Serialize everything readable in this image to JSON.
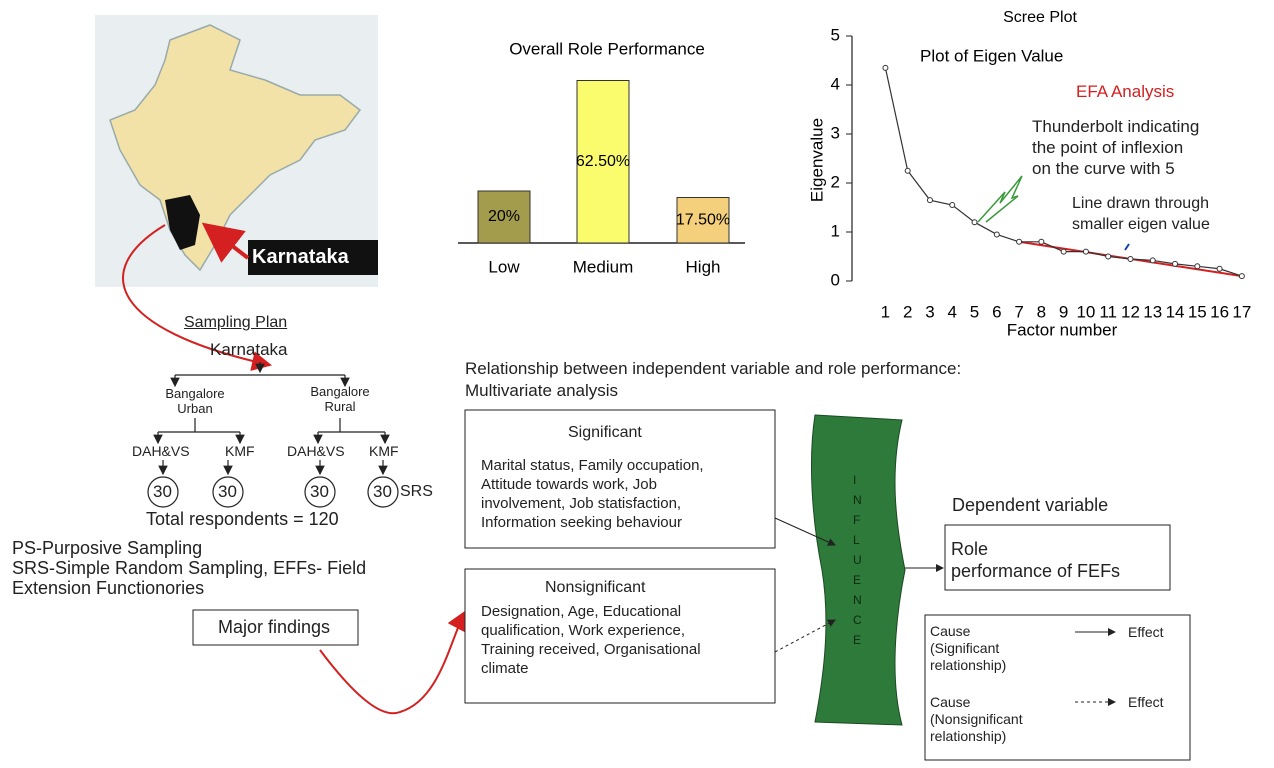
{
  "chart_data": [
    {
      "type": "bar",
      "title": "Overall Role Performance",
      "categories": [
        "Low",
        "Medium",
        "High"
      ],
      "values": [
        20,
        62.5,
        17.5
      ],
      "value_labels": [
        "20%",
        "62.50%",
        "17.50%"
      ],
      "colors": [
        "#a39c4c",
        "#fbfb6e",
        "#f4cf7c"
      ]
    },
    {
      "type": "line",
      "title": "Scree Plot",
      "subtitle": "Plot of Eigen Value",
      "x": [
        1,
        2,
        3,
        4,
        5,
        6,
        7,
        8,
        9,
        10,
        11,
        12,
        13,
        14,
        15,
        16,
        17
      ],
      "values": [
        4.35,
        2.25,
        1.65,
        1.55,
        1.2,
        0.95,
        0.8,
        0.8,
        0.6,
        0.6,
        0.5,
        0.45,
        0.42,
        0.35,
        0.3,
        0.25,
        0.1
      ],
      "xlabel": "Factor number",
      "ylabel": "Eigenvalue",
      "xlim": [
        -0.5,
        17.5
      ],
      "ylim": [
        0,
        5
      ],
      "xticks": [
        1,
        2,
        3,
        4,
        5,
        6,
        7,
        8,
        9,
        10,
        11,
        12,
        13,
        14,
        15,
        16,
        17
      ],
      "yticks": [
        0,
        1,
        2,
        3,
        4,
        5
      ],
      "color": "#333333",
      "trend_color": "#d42020",
      "efa_note": "EFA Analysis",
      "thunderbolt_note": [
        "Thunderbolt indicating",
        "the  point of inflexion",
        "on the curve with 5"
      ],
      "line_note": [
        "Line drawn through",
        "smaller eigen value"
      ]
    }
  ],
  "map": {
    "label": "Karnataka"
  },
  "sampling_plan": {
    "title": "Sampling Plan",
    "root": "Karnataka",
    "districts": [
      "Bangalore Urban",
      "Bangalore Rural"
    ],
    "agencies": [
      "DAH&VS",
      "KMF",
      "DAH&VS",
      "KMF"
    ],
    "samples": [
      "30",
      "30",
      "30",
      "30"
    ],
    "method": "SRS",
    "total": "Total respondents = 120",
    "notes": [
      "PS-Purposive Sampling",
      "SRS-Simple Random Sampling, EFFs- Field",
      "Extension Functionories"
    ],
    "findings": "Major findings"
  },
  "relationship": {
    "title": [
      "Relationship between independent variable and role performance:",
      "Multivariate analysis"
    ],
    "significant": {
      "title": "Significant",
      "lines": [
        "Marital status, Family occupation,",
        "Attitude towards work, Job",
        "involvement, Job statisfaction,",
        "Information seeking behaviour"
      ]
    },
    "nonsignificant": {
      "title": "Nonsignificant",
      "lines": [
        "Designation, Age, Educational",
        "qualification, Work experience,",
        "Training received, Organisational",
        "climate"
      ]
    },
    "influence": "INFLUENCE",
    "dependent_title": "Dependent variable",
    "dependent": [
      "Role",
      "performance of FEFs"
    ],
    "legend": [
      {
        "cause": [
          "Cause",
          "(Significant",
          "relationship)"
        ],
        "effect": "Effect"
      },
      {
        "cause": [
          "Cause",
          "(Nonsignificant",
          "relationship)"
        ],
        "effect": "Effect"
      }
    ]
  }
}
